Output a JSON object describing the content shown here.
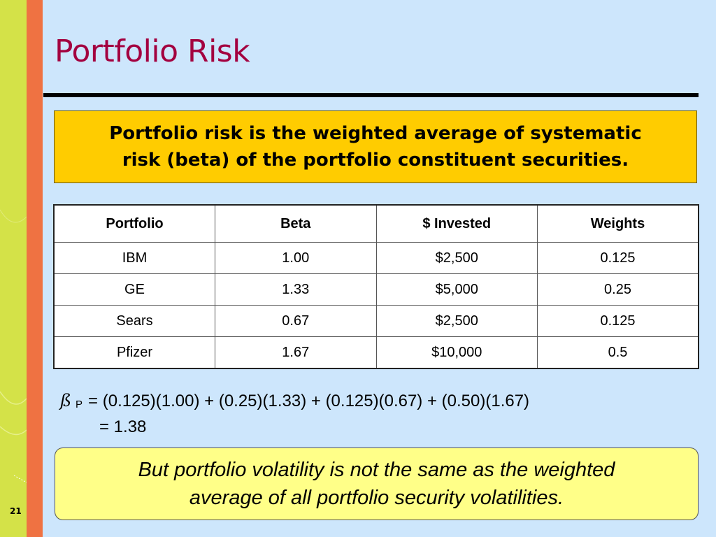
{
  "slide": {
    "title": "Portfolio Risk",
    "definition": {
      "line1": "Portfolio risk is the weighted average of systematic",
      "line2": "risk (beta) of the portfolio constituent securities."
    },
    "table": {
      "headers": [
        "Portfolio",
        "Beta",
        "$ Invested",
        "Weights"
      ],
      "rows": [
        [
          "IBM",
          "1.00",
          "$2,500",
          "0.125"
        ],
        [
          "GE",
          "1.33",
          "$5,000",
          "0.25"
        ],
        [
          "Sears",
          "0.67",
          "$2,500",
          "0.125"
        ],
        [
          "Pfizer",
          "1.67",
          "$10,000",
          "0.5"
        ]
      ]
    },
    "equation": {
      "symbol": "ß",
      "subscript": "P",
      "line1": "= (0.125)(1.00) + (0.25)(1.33) + (0.125)(0.67) + (0.50)(1.67)",
      "line2": "= 1.38"
    },
    "note": {
      "line1": "But portfolio volatility is not the same as the weighted",
      "line2": "average of all portfolio security volatilities."
    },
    "page_number": "21"
  },
  "colors": {
    "background": "#cde6fc",
    "green_band": "#d4e248",
    "orange_band": "#ef7242",
    "title": "#a3003f",
    "definition_box": "#ffcc00",
    "note_box": "#ffff88"
  }
}
